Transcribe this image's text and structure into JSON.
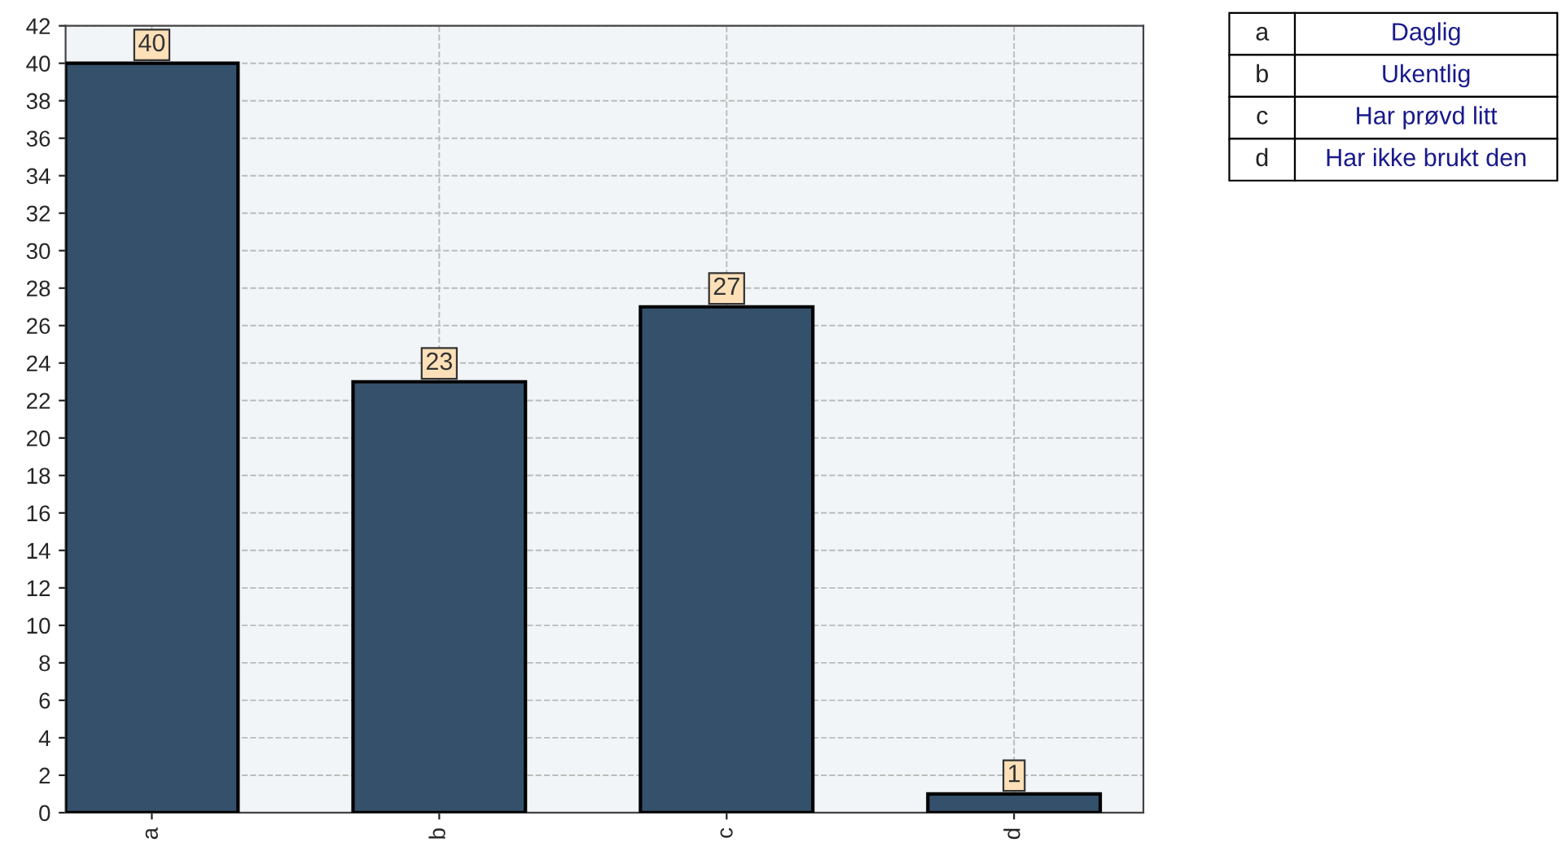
{
  "chart_data": {
    "type": "bar",
    "categories": [
      "a",
      "b",
      "c",
      "d"
    ],
    "values": [
      40,
      23,
      27,
      1
    ],
    "color": "#34506b",
    "ylim": [
      0,
      42
    ],
    "yticks": [
      0,
      2,
      4,
      6,
      8,
      10,
      12,
      14,
      16,
      18,
      20,
      22,
      24,
      26,
      28,
      30,
      32,
      34,
      36,
      38,
      40,
      42
    ],
    "grid": true,
    "data_labels": true,
    "annotations": [
      "a",
      "Daglig",
      "b",
      "Ukentlig",
      "c",
      "Har prøvd litt",
      "d",
      "Har ikke brukt den"
    ]
  }
}
